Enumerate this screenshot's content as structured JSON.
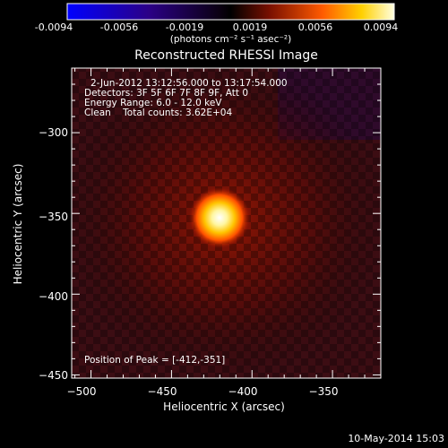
{
  "colorbar": {
    "ticks": [
      "-0.0094",
      "-0.0056",
      "-0.0019",
      "0.0019",
      "0.0056",
      "0.0094"
    ],
    "unit_label": "(photons cm⁻² s⁻¹ asec⁻²)"
  },
  "image_info": {
    "time_range": "2-Jun-2012 13:12:56.000 to 13:17:54.000",
    "detectors": "Detectors: 3F 5F 6F 7F 8F 9F, Att 0",
    "energy_range": "Energy Range: 6.0 - 12.0 keV",
    "algorithm_counts": "Clean    Total counts: 3.62E+04",
    "peak_position": "Position of Peak = [-412,-351]"
  },
  "plot_timestamp": "10-May-2014 15:03",
  "colors": {
    "background": "#000000",
    "axis": "#ffffff",
    "peak": "#ffffff"
  },
  "chart_data": {
    "type": "heatmap",
    "title": "Reconstructed RHESSI Image",
    "xlabel": "Heliocentric X (arcsec)",
    "ylabel": "Heliocentric Y (arcsec)",
    "xlim": [
      -512,
      -320
    ],
    "ylim": [
      -452,
      -260
    ],
    "x_ticks": [
      -500,
      -450,
      -400,
      -350
    ],
    "y_ticks": [
      -300,
      -350,
      -400,
      -450
    ],
    "x_tick_labels": [
      "−500",
      "−450",
      "−400",
      "−350"
    ],
    "y_tick_labels": [
      "−300",
      "−350",
      "−400",
      "−450"
    ],
    "colorbar_range": [
      -0.0094,
      0.0094
    ],
    "peak": {
      "x": -412,
      "y": -351
    }
  }
}
